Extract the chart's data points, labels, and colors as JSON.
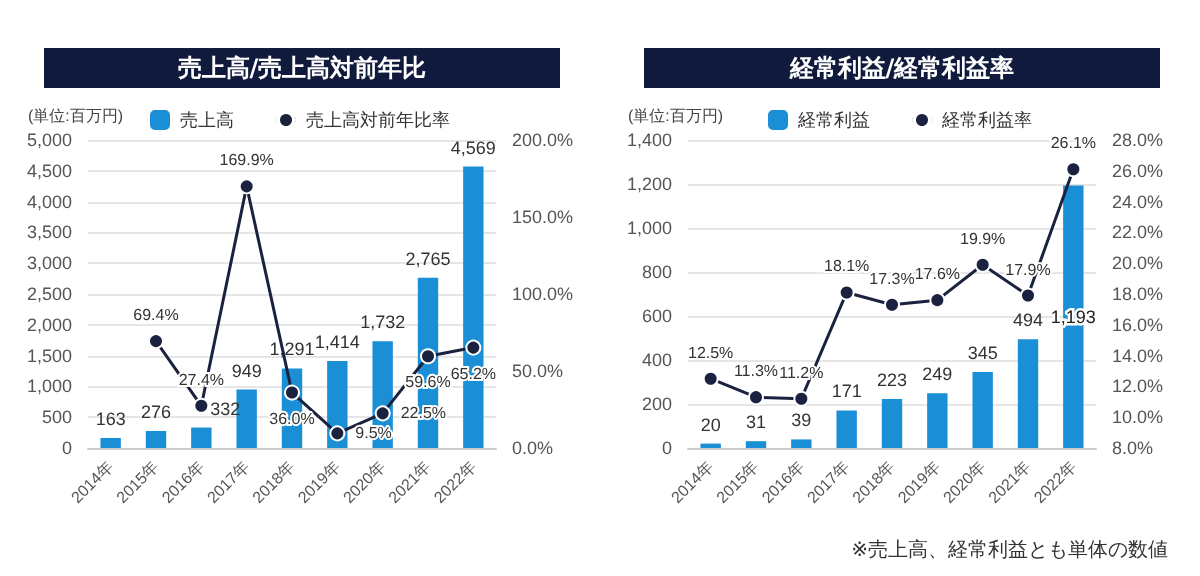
{
  "chart_data": [
    {
      "type": "bar",
      "title": "売上高/売上高対前年比",
      "ylabel": "(単位:百万円)",
      "categories": [
        "2014年",
        "2015年",
        "2016年",
        "2017年",
        "2018年",
        "2019年",
        "2020年",
        "2021年",
        "2022年"
      ],
      "series": [
        {
          "name": "売上高",
          "color": "#1a8fd6",
          "values": [
            163,
            276,
            332,
            949,
            1291,
            1414,
            1732,
            2765,
            4569
          ],
          "value_labels": [
            "163",
            "276",
            "332",
            "949",
            "1,291",
            "1,414",
            "1,732",
            "2,765",
            "4,569"
          ]
        },
        {
          "name": "売上高対前年比率",
          "type": "line",
          "axis": "y2",
          "color": "#1b2240",
          "values": [
            null,
            69.4,
            27.4,
            169.9,
            36.0,
            9.5,
            22.5,
            59.6,
            65.2
          ],
          "value_labels": [
            null,
            "69.4%",
            "27.4%",
            "169.9%",
            "36.0%",
            "9.5%",
            "22.5%",
            "59.6%",
            "65.2%"
          ]
        }
      ],
      "ylim": [
        0,
        5000
      ],
      "yticks": [
        {
          "value": 0,
          "label": "0"
        },
        {
          "value": 500,
          "label": "500"
        },
        {
          "value": 1000,
          "label": "1,000"
        },
        {
          "value": 1500,
          "label": "1,500"
        },
        {
          "value": 2000,
          "label": "2,000"
        },
        {
          "value": 2500,
          "label": "2,500"
        },
        {
          "value": 3000,
          "label": "3,000"
        },
        {
          "value": 3500,
          "label": "3,500"
        },
        {
          "value": 4000,
          "label": "4,000"
        },
        {
          "value": 4500,
          "label": "4,500"
        },
        {
          "value": 5000,
          "label": "5,000"
        }
      ],
      "y2lim": [
        0,
        200
      ],
      "y2ticks": [
        {
          "value": 0,
          "label": "0.0%"
        },
        {
          "value": 50,
          "label": "50.0%"
        },
        {
          "value": 100,
          "label": "100.0%"
        },
        {
          "value": 150,
          "label": "150.0%"
        },
        {
          "value": 200,
          "label": "200.0%"
        }
      ],
      "grid": "y",
      "legend": "top",
      "marker": "circle"
    },
    {
      "type": "bar",
      "title": "経常利益/経常利益率",
      "ylabel": "(単位:百万円)",
      "categories": [
        "2014年",
        "2015年",
        "2016年",
        "2017年",
        "2018年",
        "2019年",
        "2020年",
        "2021年",
        "2022年"
      ],
      "series": [
        {
          "name": "経常利益",
          "color": "#1a8fd6",
          "values": [
            20,
            31,
            39,
            171,
            223,
            249,
            345,
            494,
            1193
          ],
          "value_labels": [
            "20",
            "31",
            "39",
            "171",
            "223",
            "249",
            "345",
            "494",
            "1,193"
          ]
        },
        {
          "name": "経常利益率",
          "type": "line",
          "axis": "y2",
          "color": "#1b2240",
          "values": [
            12.5,
            11.3,
            11.2,
            18.1,
            17.3,
            17.6,
            19.9,
            17.9,
            26.1
          ],
          "value_labels": [
            "12.5%",
            "11.3%",
            "11.2%",
            "18.1%",
            "17.3%",
            "17.6%",
            "19.9%",
            "17.9%",
            "26.1%"
          ]
        }
      ],
      "ylim": [
        0,
        1400
      ],
      "yticks": [
        {
          "value": 0,
          "label": "0"
        },
        {
          "value": 200,
          "label": "200"
        },
        {
          "value": 400,
          "label": "400"
        },
        {
          "value": 600,
          "label": "600"
        },
        {
          "value": 800,
          "label": "800"
        },
        {
          "value": 1000,
          "label": "1,000"
        },
        {
          "value": 1200,
          "label": "1,200"
        },
        {
          "value": 1400,
          "label": "1,400"
        }
      ],
      "y2lim": [
        8,
        28
      ],
      "y2ticks": [
        {
          "value": 8,
          "label": "8.0%"
        },
        {
          "value": 10,
          "label": "10.0%"
        },
        {
          "value": 12,
          "label": "12.0%"
        },
        {
          "value": 14,
          "label": "14.0%"
        },
        {
          "value": 16,
          "label": "16.0%"
        },
        {
          "value": 18,
          "label": "18.0%"
        },
        {
          "value": 20,
          "label": "20.0%"
        },
        {
          "value": 22,
          "label": "22.0%"
        },
        {
          "value": 24,
          "label": "24.0%"
        },
        {
          "value": 26,
          "label": "26.0%"
        },
        {
          "value": 28,
          "label": "28.0%"
        }
      ],
      "grid": "y",
      "legend": "top",
      "marker": "circle",
      "annotations": [
        "※売上高、経常利益とも単体の数値"
      ]
    }
  ]
}
